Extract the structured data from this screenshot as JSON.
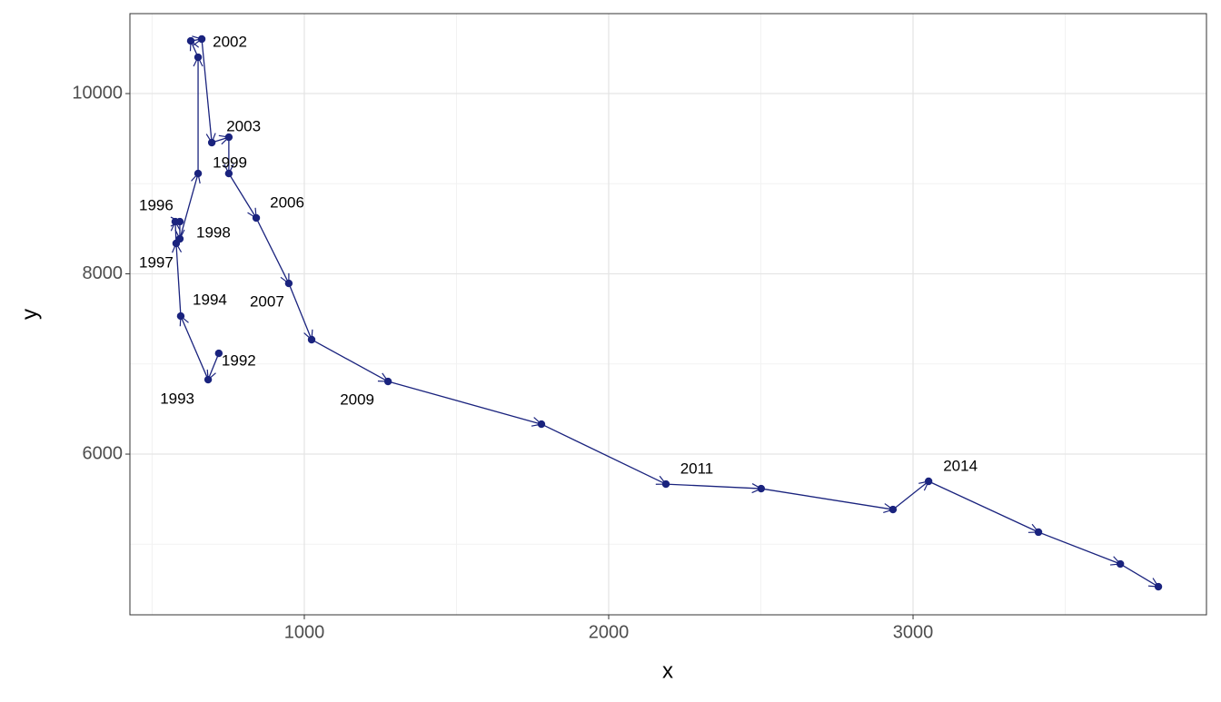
{
  "chart_data": {
    "type": "connected_scatter",
    "x_label": "x",
    "y_label": "y",
    "x": [
      719,
      684,
      594,
      579,
      576,
      591,
      591,
      651,
      651,
      627,
      663,
      696,
      752,
      752,
      842,
      949,
      1024,
      1275,
      1779,
      2188,
      2501,
      2934,
      3051,
      3412,
      3681,
      3806
    ],
    "y": [
      7118,
      6826,
      7531,
      8338,
      8579,
      8579,
      8388,
      9113,
      10403,
      10584,
      10605,
      9456,
      9516,
      9113,
      8620,
      7894,
      7270,
      6806,
      6332,
      5667,
      5617,
      5385,
      5698,
      5134,
      4781,
      4529
    ],
    "labels": [
      "1992",
      "1993",
      "1994",
      null,
      "1996",
      "1997",
      "1998",
      "1999",
      null,
      null,
      "2002",
      "2003",
      null,
      null,
      "2006",
      "2007",
      null,
      "2009",
      null,
      "2011",
      null,
      null,
      "2014",
      null,
      null,
      null
    ],
    "color": "#1a237e",
    "xlim": [
      427,
      3964
    ],
    "ylim": [
      4217,
      10887
    ],
    "xticks": [
      1000,
      2000,
      3000
    ],
    "yticks": [
      6000,
      8000,
      10000
    ],
    "grid": true,
    "minor_grid": true
  }
}
